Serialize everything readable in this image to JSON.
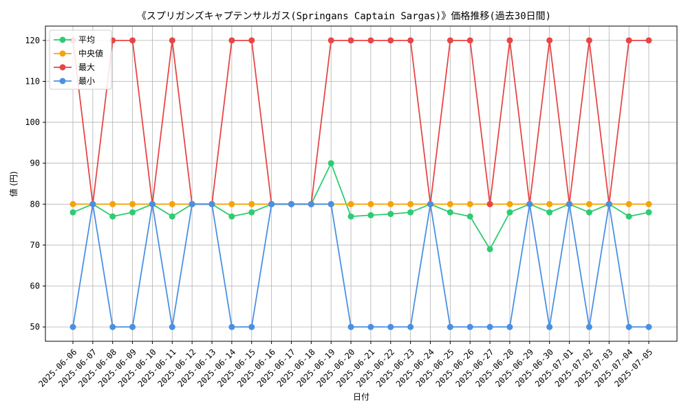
{
  "chart_data": {
    "type": "line",
    "title": "《スプリガンズキャプテンサルガス(Springans Captain Sargas)》価格推移(過去30日間)",
    "xlabel": "日付",
    "ylabel": "値 (円)",
    "ylim": [
      46.5,
      123.5
    ],
    "yticks": [
      50,
      60,
      70,
      80,
      90,
      100,
      110,
      120
    ],
    "grid": true,
    "legend_position": "top-left",
    "categories": [
      "2025-06-06",
      "2025-06-07",
      "2025-06-08",
      "2025-06-09",
      "2025-06-10",
      "2025-06-11",
      "2025-06-12",
      "2025-06-13",
      "2025-06-14",
      "2025-06-15",
      "2025-06-16",
      "2025-06-17",
      "2025-06-18",
      "2025-06-19",
      "2025-06-20",
      "2025-06-21",
      "2025-06-22",
      "2025-06-23",
      "2025-06-24",
      "2025-06-25",
      "2025-06-26",
      "2025-06-27",
      "2025-06-28",
      "2025-06-29",
      "2025-06-30",
      "2025-07-01",
      "2025-07-02",
      "2025-07-03",
      "2025-07-04",
      "2025-07-05"
    ],
    "series": [
      {
        "name": "平均",
        "color": "#2ecc71",
        "values": [
          78,
          80,
          77,
          78,
          80,
          77,
          80,
          80,
          77,
          78,
          80,
          80,
          80,
          90,
          77,
          77.3,
          77.6,
          78,
          80,
          78,
          77,
          69,
          78,
          80,
          78,
          80,
          78,
          80,
          77,
          78
        ]
      },
      {
        "name": "中央値",
        "color": "#f5a30a",
        "values": [
          80,
          80,
          80,
          80,
          80,
          80,
          80,
          80,
          80,
          80,
          80,
          80,
          80,
          80,
          80,
          80,
          80,
          80,
          80,
          80,
          80,
          80,
          80,
          80,
          80,
          80,
          80,
          80,
          80,
          80
        ]
      },
      {
        "name": "最大",
        "color": "#e84545",
        "values": [
          120,
          80,
          120,
          120,
          80,
          120,
          80,
          80,
          120,
          120,
          80,
          80,
          80,
          120,
          120,
          120,
          120,
          120,
          80,
          120,
          120,
          80,
          120,
          80,
          120,
          80,
          120,
          80,
          120,
          120
        ]
      },
      {
        "name": "最小",
        "color": "#4a90e2",
        "values": [
          50,
          80,
          50,
          50,
          80,
          50,
          80,
          80,
          50,
          50,
          80,
          80,
          80,
          80,
          50,
          50,
          50,
          50,
          80,
          50,
          50,
          50,
          50,
          80,
          50,
          80,
          50,
          80,
          50,
          50
        ]
      }
    ]
  }
}
